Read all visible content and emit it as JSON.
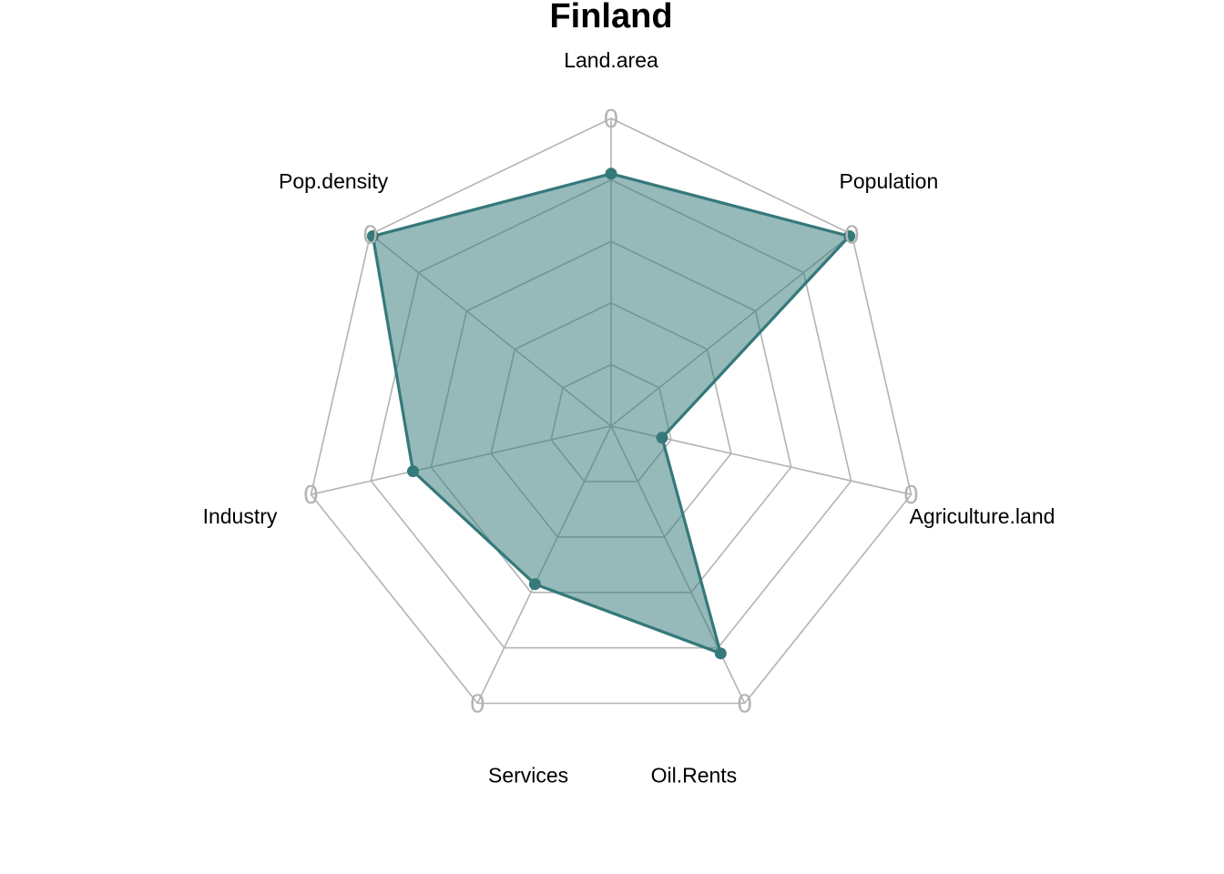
{
  "chart_data": {
    "type": "radar",
    "title": "Finland",
    "axes": [
      "Land.area",
      "Population",
      "Agriculture.land",
      "Oil.Rents",
      "Services",
      "Industry",
      "Pop.density"
    ],
    "axis_tick_label": "0",
    "grid_rings": 5,
    "range": [
      0,
      1
    ],
    "series": [
      {
        "values": [
          0.82,
          0.99,
          0.17,
          0.82,
          0.57,
          0.66,
          0.99
        ],
        "color": "#35797a",
        "fill_color": "#35797a",
        "fill_opacity": 0.52
      }
    ],
    "grid_color": "#b3b3b3",
    "legend": "none"
  }
}
